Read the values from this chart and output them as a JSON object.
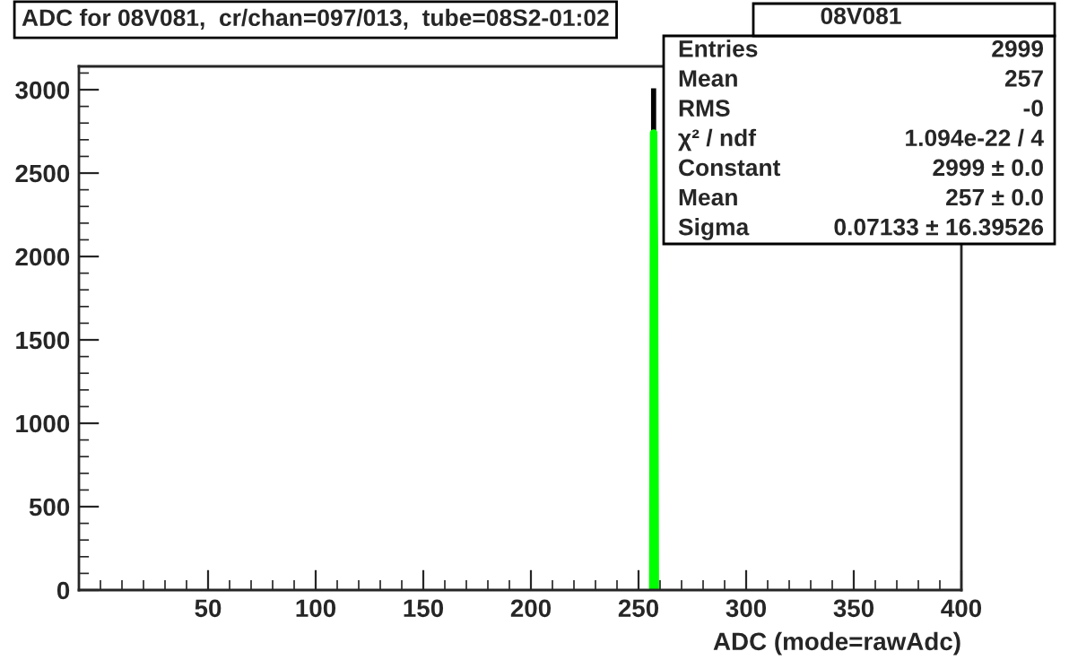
{
  "chart_data": {
    "type": "histogram",
    "title": "ADC for 08V081,  cr/chan=097/013,  tube=08S2-01:02",
    "xlabel": "ADC (mode=rawAdc)",
    "bins": [
      256.5,
      257.5
    ],
    "values": [
      2999
    ],
    "color": "#000000",
    "series": [
      {
        "type": "line",
        "color": "#00ff00",
        "x": [
          256.6,
          257,
          257.4,
          257.8
        ],
        "values": [
          0,
          2740,
          2050,
          0
        ]
      }
    ],
    "xlim": [
      -10,
      400
    ],
    "xticks": [
      50,
      100,
      150,
      200,
      250,
      300,
      350,
      400
    ],
    "ylim": [
      0,
      3140
    ],
    "yticks": [
      0,
      500,
      1000,
      1500,
      2000,
      2500,
      3000
    ],
    "annotations": [
      "08V081",
      "Entries",
      "2999",
      "Mean",
      "257",
      "RMS",
      "-0",
      "χ² / ndf",
      "1.094e-22 / 4",
      "Constant",
      "2999 ± 0.0",
      "Mean",
      "257 ± 0.0",
      "Sigma",
      "0.07133 ± 16.39526"
    ]
  }
}
